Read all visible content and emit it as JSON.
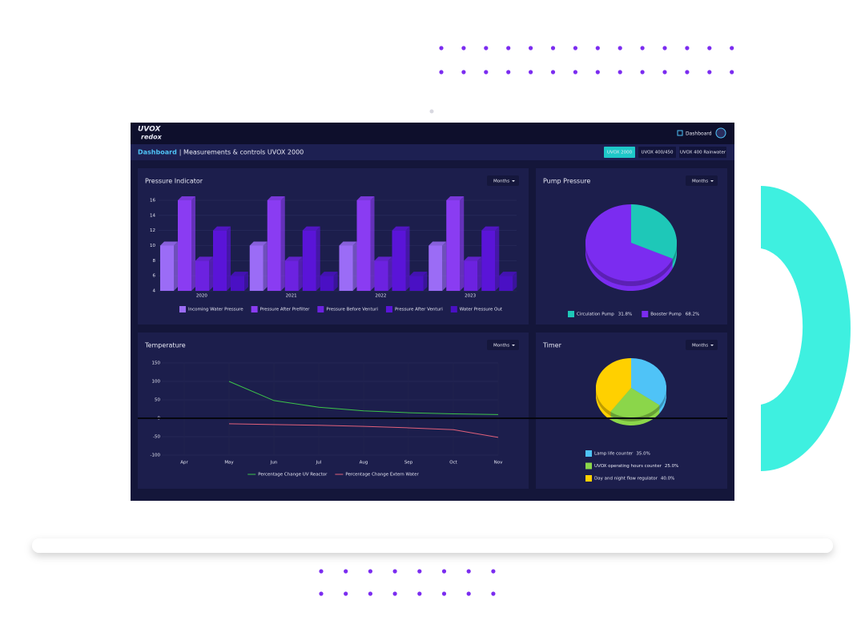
{
  "header": {
    "logo_top": "UVOX",
    "logo_bottom": "redox",
    "nav_link": "Dashboard",
    "breadcrumb": "Dashboard",
    "page_title": "| Measurements & controls UVOX 2000",
    "tabs": [
      "UVOX 2000",
      "UVOX 400/450",
      "UVOX 400 Rainwater"
    ]
  },
  "chart_data": [
    {
      "type": "bar",
      "title": "Pressure Indicator",
      "control": "Months",
      "categories": [
        "2020",
        "2021",
        "2022",
        "2023"
      ],
      "series": [
        {
          "name": "Incoming Water Pressure",
          "color": "#9b6cf6",
          "values": [
            10,
            10,
            10,
            10
          ]
        },
        {
          "name": "Pressure After Prefilter",
          "color": "#8a3cf2",
          "values": [
            16,
            16,
            16,
            16
          ]
        },
        {
          "name": "Pressure Before Venturi",
          "color": "#6c22e0",
          "values": [
            8,
            8,
            8,
            8
          ]
        },
        {
          "name": "Pressure After Venturi",
          "color": "#5a14d8",
          "values": [
            12,
            12,
            12,
            12
          ]
        },
        {
          "name": "Water Pressure Out",
          "color": "#4a10c4",
          "values": [
            6,
            6,
            6,
            6
          ]
        }
      ],
      "ylim": [
        4,
        16
      ],
      "yticks": [
        4,
        6,
        8,
        10,
        12,
        14,
        16
      ],
      "grid": true
    },
    {
      "type": "pie",
      "title": "Pump Pressure",
      "control": "Months",
      "categories": [
        "Circulation Pump",
        "Booster Pump"
      ],
      "values": [
        31.8,
        68.2
      ],
      "value_labels": [
        "31.8%",
        "68.2%"
      ],
      "colors": [
        "#1ec8b8",
        "#7b2cf0"
      ]
    },
    {
      "type": "line",
      "title": "Temperature",
      "control": "Months",
      "categories": [
        "Apr",
        "May",
        "Jun",
        "Jul",
        "Aug",
        "Sep",
        "Oct",
        "Nov"
      ],
      "series": [
        {
          "name": "Percentage Change UV Reactor",
          "color": "#3cc24a",
          "values": [
            null,
            100,
            48,
            30,
            20,
            15,
            12,
            10
          ]
        },
        {
          "name": "Percentage Change Extern Water",
          "color": "#e0607a",
          "values": [
            null,
            -15,
            -17,
            -19,
            -22,
            -26,
            -31,
            -52
          ]
        }
      ],
      "ylim": [
        -100,
        150
      ],
      "yticks": [
        -100,
        -50,
        0,
        50,
        100,
        150
      ],
      "grid": true
    },
    {
      "type": "pie",
      "title": "Timer",
      "control": "Months",
      "categories": [
        "Lamp life counter",
        "UVOX operating hours counter",
        "Day and night flow regulator"
      ],
      "values": [
        35.0,
        25.0,
        40.0
      ],
      "value_labels": [
        "35.0%",
        "25.0%",
        "40.0%"
      ],
      "colors": [
        "#4fc3f7",
        "#8bd64a",
        "#ffd000"
      ]
    }
  ]
}
